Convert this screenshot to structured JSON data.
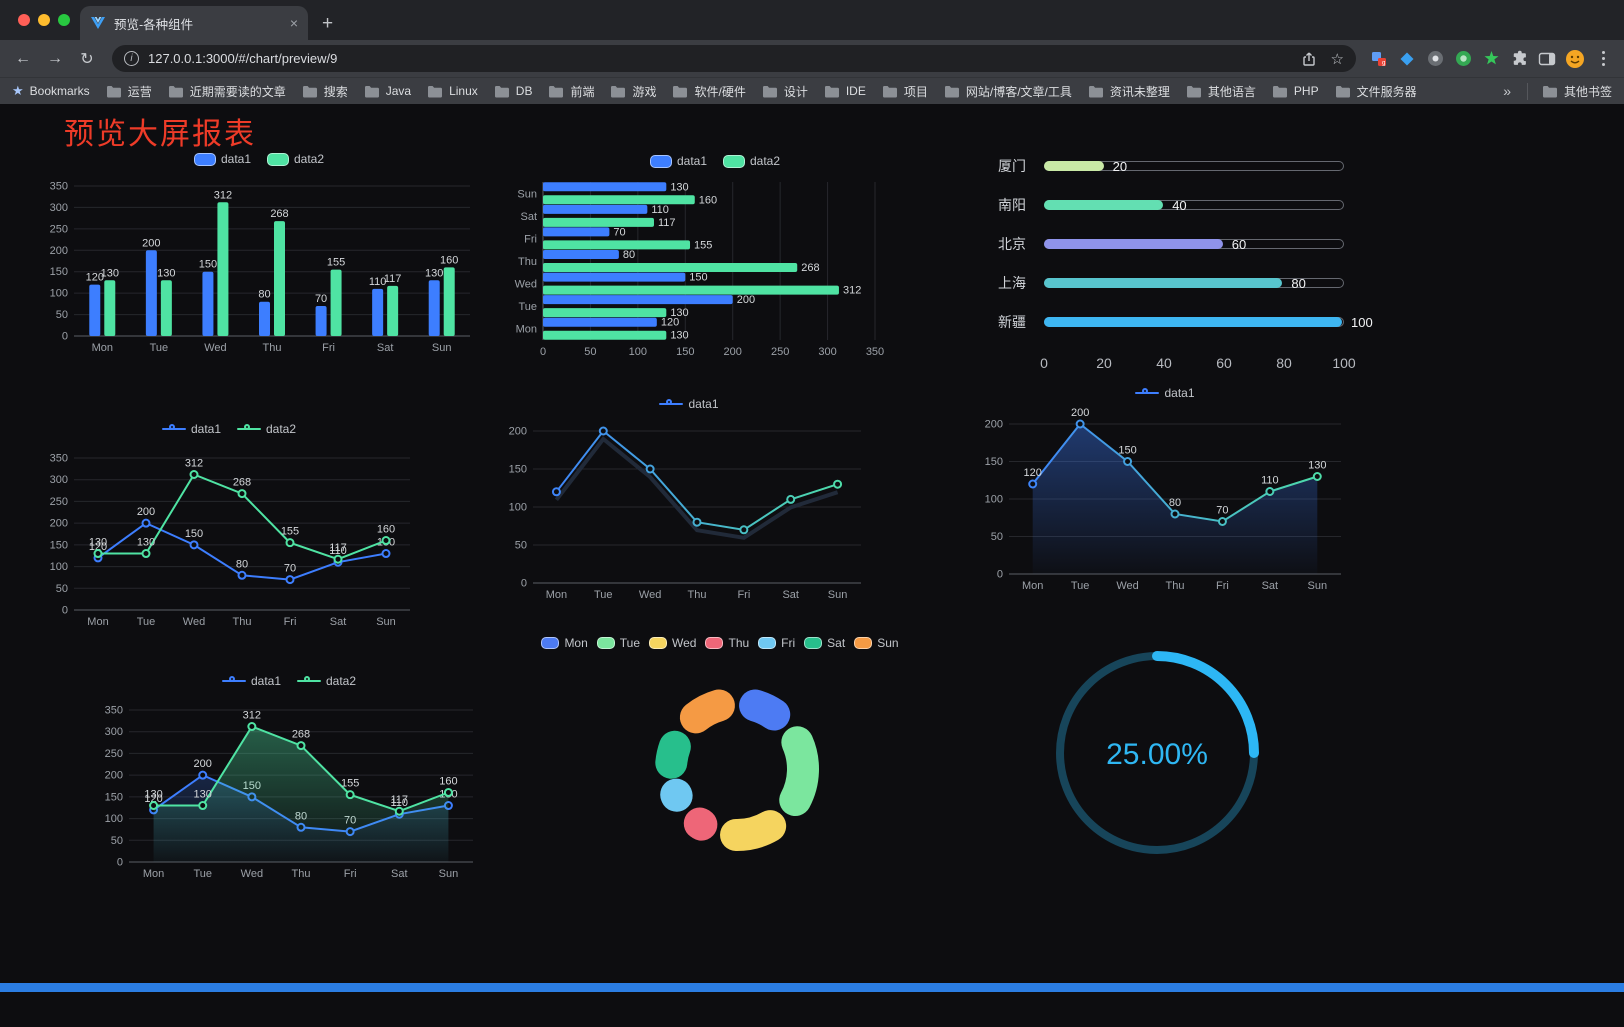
{
  "browser": {
    "tab_title": "预览-各种组件",
    "url": "127.0.0.1:3000/#/chart/preview/9",
    "icons": {
      "back": "←",
      "forward": "→",
      "reload": "↻",
      "info": "i",
      "star": "☆",
      "new_tab": "+",
      "close_tab": "×"
    },
    "bookmarks_bar": {
      "bookmarks_label": "Bookmarks",
      "folders": [
        "运营",
        "近期需要读的文章",
        "搜索",
        "Java",
        "Linux",
        "DB",
        "前端",
        "游戏",
        "软件/硬件",
        "设计",
        "IDE",
        "项目",
        "网站/博客/文章/工具",
        "资讯未整理",
        "其他语言",
        "PHP",
        "文件服务器"
      ],
      "overflow": "»",
      "other_bookmarks": "其他书签"
    }
  },
  "page": {
    "title": "预览大屏报表",
    "title_color": "#EE3B28",
    "footer_color": "#2B7DE3"
  },
  "chart_data": [
    {
      "type": "bar",
      "categories": [
        "Mon",
        "Tue",
        "Wed",
        "Thu",
        "Fri",
        "Sat",
        "Sun"
      ],
      "series": [
        {
          "name": "data1",
          "color": "#3D7EFF",
          "values": [
            120,
            200,
            150,
            80,
            70,
            110,
            130
          ]
        },
        {
          "name": "data2",
          "color": "#4FE3A3",
          "values": [
            130,
            130,
            312,
            268,
            155,
            117,
            160
          ]
        }
      ],
      "ylim": [
        0,
        350
      ],
      "yticks": [
        0,
        50,
        100,
        150,
        200,
        250,
        300,
        350
      ],
      "legend_position": "top",
      "grid": true
    },
    {
      "type": "bar-horizontal",
      "categories": [
        "Mon",
        "Tue",
        "Wed",
        "Thu",
        "Fri",
        "Sat",
        "Sun"
      ],
      "series": [
        {
          "name": "data1",
          "color": "#3D7EFF",
          "values": [
            120,
            200,
            150,
            80,
            70,
            110,
            130
          ]
        },
        {
          "name": "data2",
          "color": "#4FE3A3",
          "values": [
            130,
            130,
            312,
            268,
            155,
            117,
            160
          ]
        }
      ],
      "xlim": [
        0,
        350
      ],
      "xticks": [
        0,
        50,
        100,
        150,
        200,
        250,
        300,
        350
      ],
      "legend_position": "top",
      "grid": true
    },
    {
      "type": "progress-bars",
      "max": 100,
      "items": [
        {
          "label": "厦门",
          "value": 20,
          "color": "#C9E9A6"
        },
        {
          "label": "南阳",
          "value": 40,
          "color": "#63DFB2"
        },
        {
          "label": "北京",
          "value": 60,
          "color": "#8F93EA"
        },
        {
          "label": "上海",
          "value": 80,
          "color": "#58C5CE"
        },
        {
          "label": "新疆",
          "value": 100,
          "color": "#3EB6F2"
        }
      ],
      "axis_ticks": [
        0,
        20,
        40,
        60,
        80,
        100
      ]
    },
    {
      "type": "line",
      "categories": [
        "Mon",
        "Tue",
        "Wed",
        "Thu",
        "Fri",
        "Sat",
        "Sun"
      ],
      "series": [
        {
          "name": "data1",
          "color": "#3D7EFF",
          "values": [
            120,
            200,
            150,
            80,
            70,
            110,
            130
          ]
        },
        {
          "name": "data2",
          "color": "#4FE3A3",
          "values": [
            130,
            130,
            312,
            268,
            155,
            117,
            160
          ]
        }
      ],
      "ylim": [
        0,
        350
      ],
      "yticks": [
        0,
        50,
        100,
        150,
        200,
        250,
        300,
        350
      ],
      "show_point_labels": true,
      "legend_position": "top",
      "grid": true
    },
    {
      "type": "line",
      "categories": [
        "Mon",
        "Tue",
        "Wed",
        "Thu",
        "Fri",
        "Sat",
        "Sun"
      ],
      "series": [
        {
          "name": "data1",
          "color_gradient": [
            "#3D7EFF",
            "#4FE3A3"
          ],
          "values": [
            120,
            200,
            150,
            80,
            70,
            110,
            130
          ]
        }
      ],
      "ylim": [
        0,
        200
      ],
      "yticks": [
        0,
        50,
        100,
        150,
        200
      ],
      "show_point_labels": false,
      "legend_position": "top",
      "grid": true
    },
    {
      "type": "area",
      "categories": [
        "Mon",
        "Tue",
        "Wed",
        "Thu",
        "Fri",
        "Sat",
        "Sun"
      ],
      "series": [
        {
          "name": "data1",
          "color_gradient": [
            "#3D7EFF",
            "#4FE3A3"
          ],
          "area": true,
          "area_opacity": 0.4,
          "values": [
            120,
            200,
            150,
            80,
            70,
            110,
            130
          ]
        }
      ],
      "ylim": [
        0,
        200
      ],
      "yticks": [
        0,
        50,
        100,
        150,
        200
      ],
      "show_point_labels": true,
      "legend_position": "top",
      "grid": true
    },
    {
      "type": "area",
      "categories": [
        "Mon",
        "Tue",
        "Wed",
        "Thu",
        "Fri",
        "Sat",
        "Sun"
      ],
      "series": [
        {
          "name": "data1",
          "color": "#3D7EFF",
          "area": true,
          "area_opacity": 0.22,
          "values": [
            120,
            200,
            150,
            80,
            70,
            110,
            130
          ]
        },
        {
          "name": "data2",
          "color": "#4FE3A3",
          "area": true,
          "area_opacity": 0.38,
          "values": [
            130,
            130,
            312,
            268,
            155,
            117,
            160
          ]
        }
      ],
      "ylim": [
        0,
        350
      ],
      "yticks": [
        0,
        50,
        100,
        150,
        200,
        250,
        300,
        350
      ],
      "show_point_labels": true,
      "legend_position": "top",
      "grid": true
    },
    {
      "type": "donut",
      "categories": [
        "Mon",
        "Tue",
        "Wed",
        "Thu",
        "Fri",
        "Sat",
        "Sun"
      ],
      "values": [
        120,
        200,
        150,
        80,
        70,
        110,
        130
      ],
      "colors": [
        "#4D7BF3",
        "#7BE69E",
        "#F5D45F",
        "#EE6678",
        "#6FC8F2",
        "#27BF8C",
        "#F59A44"
      ],
      "legend_position": "top"
    },
    {
      "type": "ring-progress",
      "label": "25.00%",
      "percent": 25,
      "color": "#2DB7F5",
      "track_color": "#17455A"
    }
  ]
}
